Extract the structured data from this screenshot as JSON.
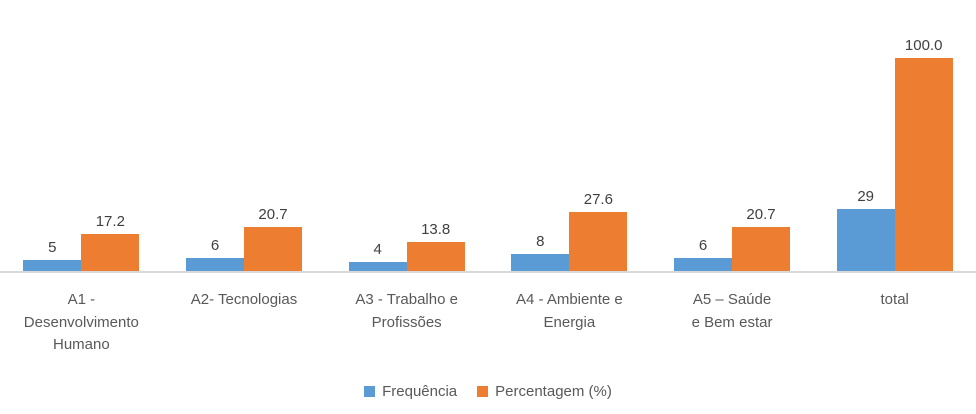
{
  "chart_data": {
    "type": "bar",
    "title": "",
    "xlabel": "",
    "ylabel": "",
    "ylim": [
      0,
      100
    ],
    "grid": false,
    "legend_position": "bottom-center",
    "axis_line_color": "#D9D9D9",
    "background_color": "#FFFFFF",
    "categories": [
      "A1 -\nDesenvolvimento\nHumano",
      "A2- Tecnologias",
      "A3 - Trabalho e\nProfissões",
      "A4 - Ambiente e\nEnergia",
      "A5 – Saúde\ne Bem estar",
      "total"
    ],
    "series": [
      {
        "name": "Frequência",
        "color": "#5B9BD5",
        "values": [
          5,
          6,
          4,
          8,
          6,
          29
        ],
        "labels": [
          "5",
          "6",
          "4",
          "8",
          "6",
          "29"
        ]
      },
      {
        "name": "Percentagem (%)",
        "color": "#ED7D31",
        "values": [
          17.2,
          20.7,
          13.8,
          27.6,
          20.7,
          100.0
        ],
        "labels": [
          "17.2",
          "20.7",
          "13.8",
          "27.6",
          "20.7",
          "100.0"
        ]
      }
    ]
  }
}
